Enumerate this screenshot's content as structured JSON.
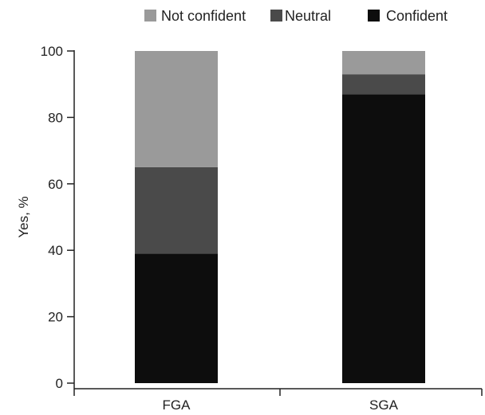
{
  "chart_data": {
    "type": "bar",
    "stacked": true,
    "categories": [
      "FGA",
      "SGA"
    ],
    "series": [
      {
        "name": "Confident",
        "color": "#0d0d0d",
        "values": [
          39,
          87
        ]
      },
      {
        "name": "Neutral",
        "color": "#4a4a4a",
        "values": [
          26,
          6
        ]
      },
      {
        "name": "Not confident",
        "color": "#9a9a9a",
        "values": [
          35,
          7
        ]
      }
    ],
    "legend_order": [
      "Not confident",
      "Neutral",
      "Confident"
    ],
    "legend_position": "top",
    "ylabel": "Yes, %",
    "xlabel": "",
    "ylim": [
      0,
      100
    ],
    "yticks": [
      0,
      20,
      40,
      60,
      80,
      100
    ],
    "grid": false
  }
}
